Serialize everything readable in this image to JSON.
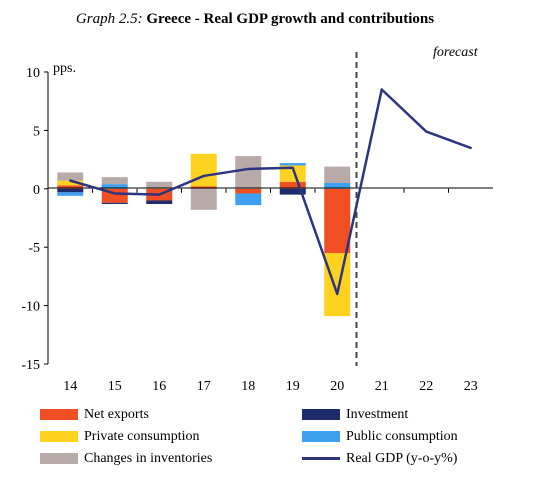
{
  "chart_data": {
    "type": "bar",
    "title_prefix": "Graph 2.5:",
    "title": "Greece - Real GDP growth and contributions",
    "unit_label": "pps.",
    "forecast_label": "forecast",
    "categories": [
      "14",
      "15",
      "16",
      "17",
      "18",
      "19",
      "20",
      "21",
      "22",
      "23"
    ],
    "ylim": [
      -15,
      10
    ],
    "yticks": [
      10,
      5,
      0,
      -5,
      -10,
      -15
    ],
    "grid": false,
    "legend_position": "bottom",
    "forecast_from": "21",
    "series": [
      {
        "name": "Net exports",
        "kind": "bar",
        "color": "#f04e23",
        "values": [
          0.3,
          -1.2,
          -1.0,
          0.2,
          -0.4,
          0.6,
          -5.5,
          null,
          null,
          null
        ]
      },
      {
        "name": "Investment",
        "kind": "bar",
        "color": "#1f2c6b",
        "values": [
          -0.3,
          -0.1,
          -0.3,
          0.0,
          0.0,
          -0.5,
          0.0,
          null,
          null,
          null
        ]
      },
      {
        "name": "Private consumption",
        "kind": "bar",
        "color": "#ffd21f",
        "values": [
          0.4,
          0.0,
          0.0,
          2.8,
          0.0,
          1.4,
          -5.4,
          null,
          null,
          null
        ]
      },
      {
        "name": "Public consumption",
        "kind": "bar",
        "color": "#3ea0f0",
        "values": [
          -0.3,
          0.4,
          0.0,
          0.0,
          -1.0,
          0.2,
          0.5,
          null,
          null,
          null
        ]
      },
      {
        "name": "Changes in inventories",
        "kind": "bar",
        "color": "#b8aaa8",
        "values": [
          0.7,
          0.6,
          0.6,
          -1.8,
          2.8,
          0.0,
          1.4,
          null,
          null,
          null
        ]
      },
      {
        "name": "Real GDP (y-o-y%)",
        "kind": "line",
        "color": "#2e3580",
        "values": [
          0.7,
          -0.4,
          -0.5,
          1.1,
          1.7,
          1.8,
          -9.0,
          8.5,
          4.9,
          3.5
        ]
      }
    ]
  }
}
